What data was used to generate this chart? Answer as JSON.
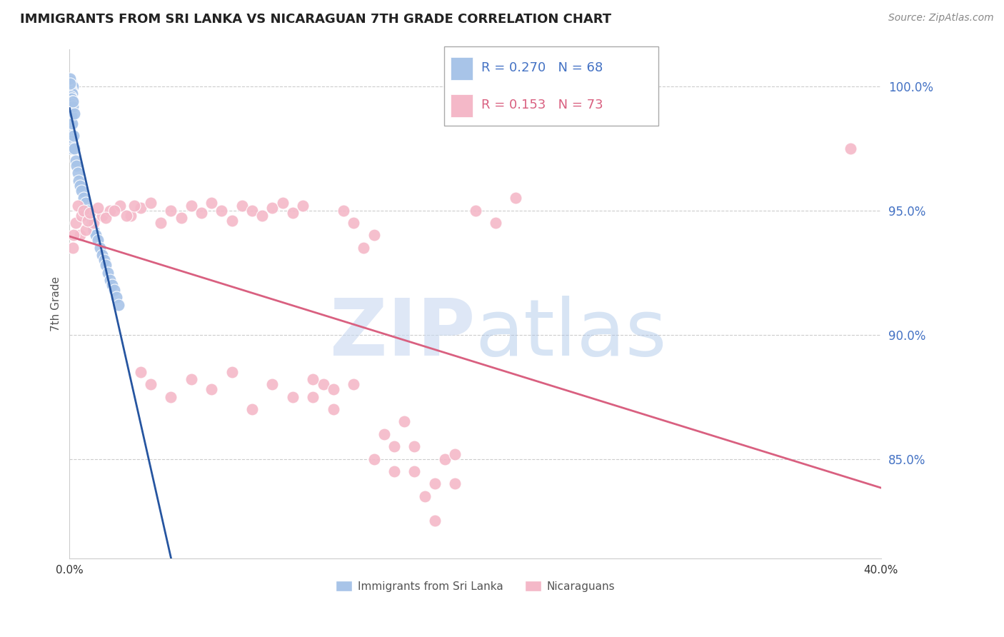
{
  "title": "IMMIGRANTS FROM SRI LANKA VS NICARAGUAN 7TH GRADE CORRELATION CHART",
  "source": "Source: ZipAtlas.com",
  "ylabel": "7th Grade",
  "xlim": [
    0.0,
    40.0
  ],
  "ylim": [
    81.0,
    101.5
  ],
  "blue_R": 0.27,
  "blue_N": 68,
  "pink_R": 0.153,
  "pink_N": 73,
  "blue_color": "#a8c4e8",
  "blue_line_color": "#2655a0",
  "pink_color": "#f4b8c8",
  "pink_line_color": "#d96080",
  "legend_label_blue": "Immigrants from Sri Lanka",
  "legend_label_pink": "Nicaraguans",
  "blue_x": [
    0.05,
    0.08,
    0.1,
    0.12,
    0.15,
    0.05,
    0.07,
    0.09,
    0.11,
    0.13,
    0.06,
    0.08,
    0.1,
    0.14,
    0.07,
    0.09,
    0.06,
    0.08,
    0.05,
    0.07,
    0.04,
    0.06,
    0.08,
    0.1,
    0.04,
    0.06,
    0.09,
    0.03,
    0.05,
    0.07,
    0.03,
    0.05,
    0.08,
    0.05,
    0.08,
    0.1,
    0.12,
    0.2,
    0.25,
    0.3,
    0.18,
    0.22,
    0.15,
    0.35,
    0.4,
    0.45,
    0.5,
    0.6,
    0.7,
    0.8,
    0.9,
    1.0,
    1.1,
    1.2,
    1.3,
    1.4,
    1.5,
    1.6,
    1.7,
    1.8,
    1.9,
    2.0,
    2.1,
    2.2,
    2.3,
    2.4,
    0.02,
    0.02
  ],
  "blue_y": [
    100.2,
    100.1,
    100.0,
    100.0,
    100.0,
    99.9,
    99.8,
    99.8,
    99.7,
    99.7,
    99.6,
    99.5,
    99.5,
    99.4,
    99.3,
    99.2,
    99.1,
    99.0,
    98.9,
    98.8,
    98.7,
    98.6,
    98.5,
    98.4,
    98.3,
    98.2,
    98.1,
    98.0,
    97.9,
    97.8,
    97.7,
    97.6,
    97.5,
    99.3,
    99.0,
    98.8,
    98.5,
    98.0,
    97.5,
    97.0,
    99.2,
    98.9,
    99.4,
    96.8,
    96.5,
    96.2,
    96.0,
    95.8,
    95.5,
    95.3,
    95.0,
    94.8,
    94.5,
    94.2,
    94.0,
    93.8,
    93.5,
    93.2,
    93.0,
    92.8,
    92.5,
    92.2,
    92.0,
    91.8,
    91.5,
    91.2,
    100.3,
    100.1
  ],
  "pink_x": [
    0.15,
    0.5,
    0.8,
    1.2,
    1.6,
    2.0,
    2.5,
    3.0,
    3.5,
    4.0,
    4.5,
    5.0,
    5.5,
    6.0,
    6.5,
    7.0,
    7.5,
    8.0,
    8.5,
    9.0,
    9.5,
    10.0,
    10.5,
    11.0,
    11.5,
    12.0,
    12.5,
    13.0,
    13.5,
    14.0,
    14.5,
    15.0,
    15.5,
    16.0,
    16.5,
    17.0,
    17.5,
    18.0,
    18.5,
    19.0,
    3.5,
    4.0,
    5.0,
    6.0,
    7.0,
    8.0,
    9.0,
    10.0,
    11.0,
    12.0,
    13.0,
    14.0,
    15.0,
    16.0,
    17.0,
    18.0,
    19.0,
    20.0,
    21.0,
    22.0,
    0.2,
    0.3,
    0.4,
    0.6,
    0.7,
    0.9,
    1.0,
    1.4,
    1.8,
    2.2,
    2.8,
    3.2,
    38.5
  ],
  "pink_y": [
    93.5,
    94.0,
    94.2,
    94.5,
    94.8,
    95.0,
    95.2,
    94.8,
    95.1,
    95.3,
    94.5,
    95.0,
    94.7,
    95.2,
    94.9,
    95.3,
    95.0,
    94.6,
    95.2,
    95.0,
    94.8,
    95.1,
    95.3,
    94.9,
    95.2,
    87.5,
    88.0,
    87.0,
    95.0,
    94.5,
    93.5,
    94.0,
    86.0,
    85.5,
    86.5,
    84.5,
    83.5,
    82.5,
    85.0,
    84.0,
    88.5,
    88.0,
    87.5,
    88.2,
    87.8,
    88.5,
    87.0,
    88.0,
    87.5,
    88.2,
    87.8,
    88.0,
    85.0,
    84.5,
    85.5,
    84.0,
    85.2,
    95.0,
    94.5,
    95.5,
    94.0,
    94.5,
    95.2,
    94.8,
    95.0,
    94.6,
    94.9,
    95.1,
    94.7,
    95.0,
    94.8,
    95.2,
    97.5
  ]
}
